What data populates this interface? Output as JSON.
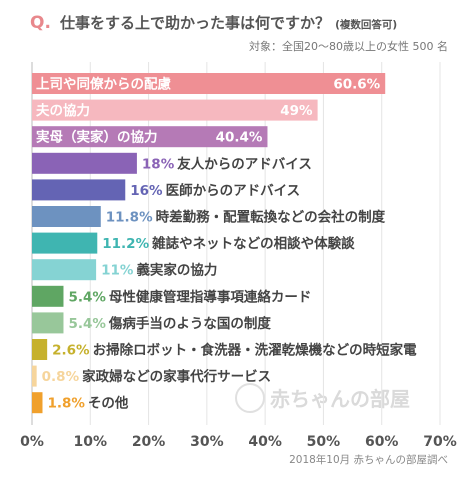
{
  "title": {
    "prefix": "Q.",
    "main": "仕事をする上で助かった事は何ですか？",
    "note": "(複数回答可)"
  },
  "subtitle": "対象：全国20～80歳以上の女性 500 名",
  "source": "2018年10月 赤ちゃんの部屋調べ",
  "watermark": "赤ちゃんの部屋",
  "chart_data": {
    "type": "bar",
    "orientation": "horizontal",
    "xlim": [
      0,
      70
    ],
    "xticks": [
      "0%",
      "10%",
      "20%",
      "30%",
      "40%",
      "50%",
      "60%",
      "70%"
    ],
    "grid": true,
    "bars": [
      {
        "label": "上司や同僚からの配慮",
        "value": 60.6,
        "value_label": "60.6%",
        "color": "#ef8f94",
        "label_inside": true
      },
      {
        "label": "夫の協力",
        "value": 49,
        "value_label": "49%",
        "color": "#f6b8bf",
        "label_inside": true
      },
      {
        "label": "実母（実家）の協力",
        "value": 40.4,
        "value_label": "40.4%",
        "color": "#b57ab6",
        "label_inside": true
      },
      {
        "label": "友人からのアドバイス",
        "value": 18,
        "value_label": "18%",
        "color": "#8a63b6",
        "label_inside": false
      },
      {
        "label": "医師からのアドバイス",
        "value": 16,
        "value_label": "16%",
        "color": "#6464b4",
        "label_inside": false
      },
      {
        "label": "時差勤務・配置転換などの会社の制度",
        "value": 11.8,
        "value_label": "11.8%",
        "color": "#6d92c0",
        "label_inside": false
      },
      {
        "label": "雑誌やネットなどの相談や体験談",
        "value": 11.2,
        "value_label": "11.2%",
        "color": "#3fb5b1",
        "label_inside": false
      },
      {
        "label": "義実家の協力",
        "value": 11,
        "value_label": "11%",
        "color": "#85d3d3",
        "label_inside": false
      },
      {
        "label": "母性健康管理指導事項連絡カード",
        "value": 5.4,
        "value_label": "5.4%",
        "color": "#5fa663",
        "label_inside": false
      },
      {
        "label": "傷病手当のような国の制度",
        "value": 5.4,
        "value_label": "5.4%",
        "color": "#98c79a",
        "label_inside": false
      },
      {
        "label": "お掃除ロボット・食洗器・洗濯乾燥機などの時短家電",
        "value": 2.6,
        "value_label": "2.6%",
        "color": "#c6b12d",
        "label_inside": false
      },
      {
        "label": "家政婦などの家事代行サービス",
        "value": 0.8,
        "value_label": "0.8%",
        "color": "#f6d59c",
        "label_inside": false
      },
      {
        "label": "その他",
        "value": 1.8,
        "value_label": "1.8%",
        "color": "#f0a02c",
        "label_inside": false
      }
    ]
  }
}
